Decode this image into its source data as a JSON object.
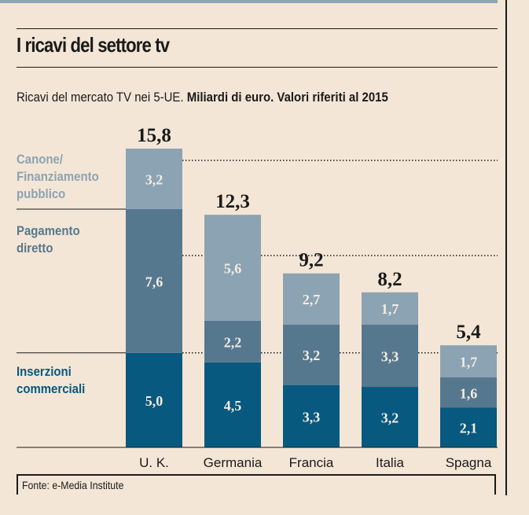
{
  "header": {
    "title": "I ricavi del settore tv",
    "subtitle_regular": "Ricavi  del mercato TV nei 5-UE. ",
    "subtitle_bold": "Miliardi di euro. Valori riferiti al 2015"
  },
  "legend": {
    "canone": "Canone/ Finanziamento pubblico",
    "pagamento": "Pagamento diretto",
    "inserzioni": "Inserzioni commerciali"
  },
  "footer": {
    "source": "Fonte: e-Media Institute"
  },
  "colors": {
    "canone": "#8ca3b3",
    "pagamento": "#56788f",
    "inserzioni": "#07597f",
    "background": "#f4e6d6"
  },
  "chart_data": {
    "type": "bar",
    "stacked": true,
    "title": "I ricavi del settore tv",
    "subtitle": "Ricavi del mercato TV nei 5-UE. Miliardi di euro. Valori riferiti al 2015",
    "categories": [
      "U. K.",
      "Germania",
      "Francia",
      "Italia",
      "Spagna"
    ],
    "series": [
      {
        "name": "Inserzioni commerciali",
        "values": [
          5.0,
          4.5,
          3.3,
          3.2,
          2.1
        ],
        "labels": [
          "5,0",
          "4,5",
          "3,3",
          "3,2",
          "2,1"
        ]
      },
      {
        "name": "Pagamento diretto",
        "values": [
          7.6,
          2.2,
          3.2,
          3.3,
          1.6
        ],
        "labels": [
          "7,6",
          "2,2",
          "3,2",
          "3,3",
          "1,6"
        ]
      },
      {
        "name": "Canone/Finanziamento pubblico",
        "values": [
          3.2,
          5.6,
          2.7,
          1.7,
          1.7
        ],
        "labels": [
          "3,2",
          "5,6",
          "2,7",
          "1,7",
          "1,7"
        ]
      }
    ],
    "totals": [
      15.8,
      12.3,
      9.2,
      8.2,
      5.4
    ],
    "total_labels": [
      "15,8",
      "12,3",
      "9,2",
      "8,2",
      "5,4"
    ],
    "xlabel": "",
    "ylabel": "Miliardi di euro",
    "ylim": [
      0,
      15.8
    ],
    "grid": false,
    "legend_position": "left",
    "source": "Fonte: e-Media Institute"
  }
}
